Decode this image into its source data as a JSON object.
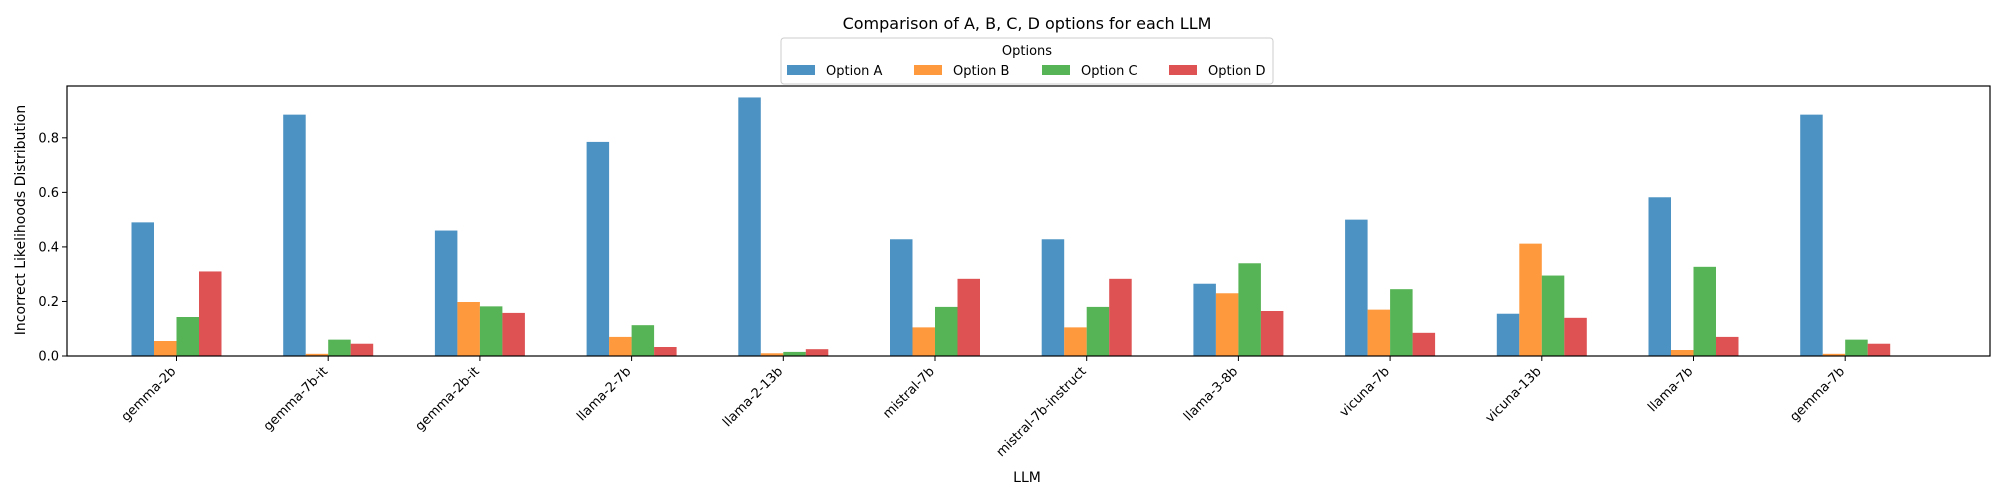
{
  "chart_data": {
    "type": "bar",
    "title": "Comparison of A, B, C, D options for each LLM",
    "xlabel": "LLM",
    "ylabel": "Incorrect Likelihoods Distribution",
    "ylim": [
      0,
      0.99
    ],
    "yticks": [
      0.0,
      0.2,
      0.4,
      0.6,
      0.8
    ],
    "ytick_labels": [
      "0.0",
      "0.2",
      "0.4",
      "0.6",
      "0.8"
    ],
    "grid": false,
    "legend": {
      "title": "Options",
      "placement": "top-center",
      "columns": 4
    },
    "categories": [
      "gemma-2b",
      "gemma-7b-it",
      "gemma-2b-it",
      "llama-2-7b",
      "llama-2-13b",
      "mistral-7b",
      "mistral-7b-instruct",
      "llama-3-8b",
      "vicuna-7b",
      "vicuna-13b",
      "llama-7b",
      "gemma-7b"
    ],
    "series": [
      {
        "name": "Option A",
        "color": "#1f77b4",
        "values": [
          0.49,
          0.885,
          0.46,
          0.785,
          0.948,
          0.428,
          0.428,
          0.265,
          0.5,
          0.155,
          0.582,
          0.885
        ]
      },
      {
        "name": "Option B",
        "color": "#ff7f0e",
        "values": [
          0.055,
          0.008,
          0.198,
          0.07,
          0.01,
          0.105,
          0.105,
          0.23,
          0.17,
          0.412,
          0.022,
          0.008
        ]
      },
      {
        "name": "Option C",
        "color": "#2ca02c",
        "values": [
          0.143,
          0.06,
          0.182,
          0.113,
          0.015,
          0.18,
          0.18,
          0.34,
          0.245,
          0.295,
          0.327,
          0.06
        ]
      },
      {
        "name": "Option D",
        "color": "#d62728",
        "values": [
          0.31,
          0.045,
          0.158,
          0.033,
          0.025,
          0.283,
          0.283,
          0.165,
          0.085,
          0.14,
          0.07,
          0.045
        ]
      }
    ]
  }
}
